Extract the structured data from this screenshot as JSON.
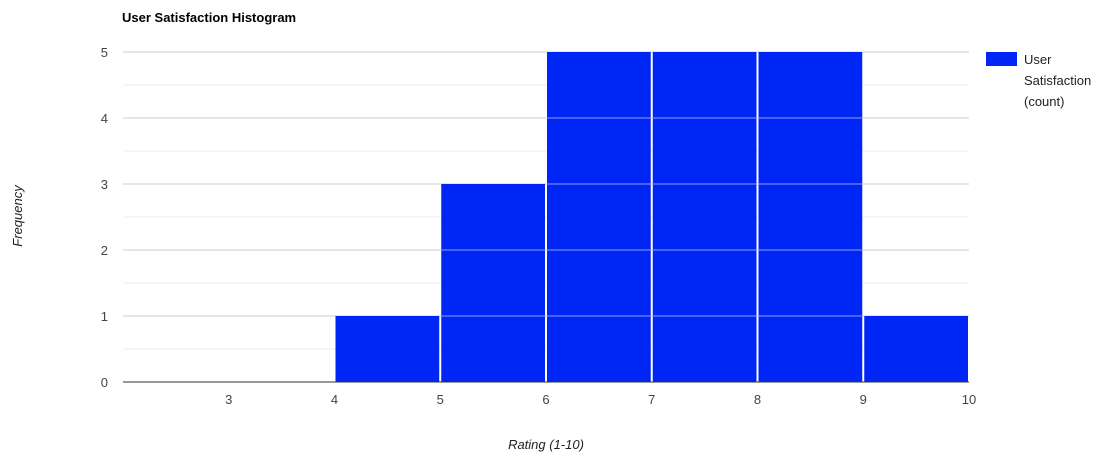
{
  "chart_data": {
    "type": "bar",
    "title": "User Satisfaction Histogram",
    "xlabel": "Rating (1-10)",
    "ylabel": "Frequency",
    "xlim": [
      2,
      10
    ],
    "ylim": [
      0,
      5
    ],
    "x_ticks": [
      3,
      4,
      5,
      6,
      7,
      8,
      9,
      10
    ],
    "y_ticks": [
      0,
      1,
      2,
      3,
      4,
      5
    ],
    "bins": [
      {
        "start": 4,
        "end": 5,
        "value": 1
      },
      {
        "start": 5,
        "end": 6,
        "value": 3
      },
      {
        "start": 6,
        "end": 7,
        "value": 5
      },
      {
        "start": 7,
        "end": 8,
        "value": 5
      },
      {
        "start": 8,
        "end": 9,
        "value": 5
      },
      {
        "start": 9,
        "end": 10,
        "value": 1
      }
    ],
    "series": [
      {
        "name": "User Satisfaction (count)",
        "color": "#0026f5"
      }
    ],
    "legend": {
      "position": "right",
      "lines": [
        "User",
        "Satisfaction",
        "(count)"
      ]
    },
    "grid": true,
    "colors": {
      "bar": "#0026f5",
      "grid_major": "#cccccc",
      "grid_minor": "#ececec",
      "axis": "#333333"
    }
  }
}
